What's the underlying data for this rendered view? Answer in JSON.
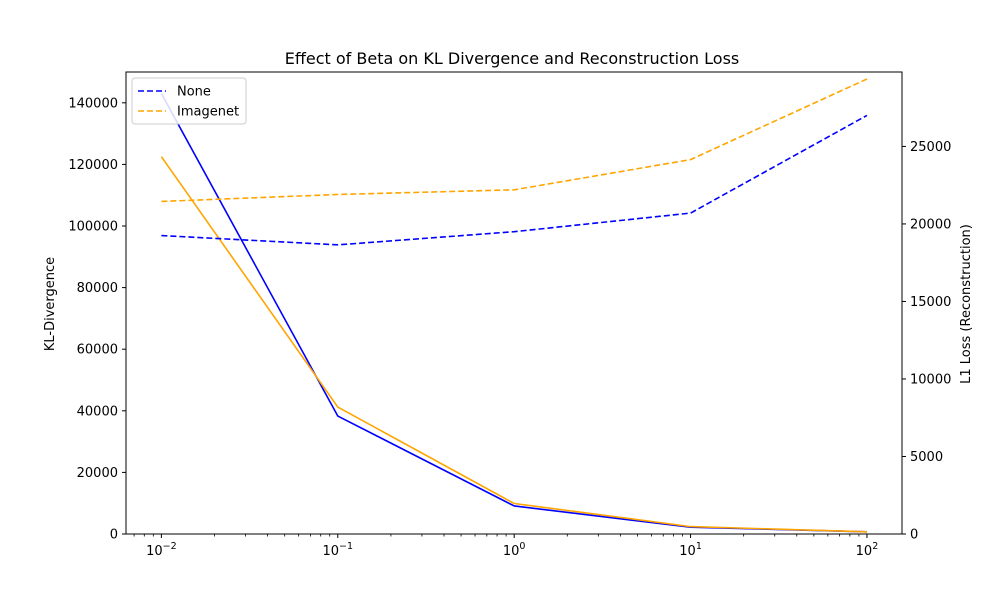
{
  "chart_data": {
    "type": "line",
    "title": "Effect of Beta on KL Divergence and Reconstruction Loss",
    "xlabel": "",
    "ylabel_left": "KL-Divergence",
    "ylabel_right": "L1 Loss (Reconstruction)",
    "x_scale": "log",
    "x": [
      0.01,
      0.1,
      1,
      10,
      100
    ],
    "x_tick_values": [
      0.01,
      0.1,
      1,
      10,
      100
    ],
    "x_tick_exponents": [
      "−2",
      "−1",
      "0",
      "1",
      "2"
    ],
    "x_tick_base": "10",
    "xlim": [
      0.0063,
      158
    ],
    "ylim_left": [
      0,
      150000
    ],
    "ylim_right": [
      0,
      29800
    ],
    "left_ticks": [
      "0",
      "20000",
      "40000",
      "60000",
      "80000",
      "100000",
      "120000",
      "140000"
    ],
    "left_tick_values": [
      0,
      20000,
      40000,
      60000,
      80000,
      100000,
      120000,
      140000
    ],
    "right_ticks": [
      "0",
      "5000",
      "10000",
      "15000",
      "20000",
      "25000"
    ],
    "right_tick_values": [
      0,
      5000,
      10000,
      15000,
      20000,
      25000
    ],
    "grid": false,
    "legend": {
      "placement": "top-left",
      "entries": [
        "None",
        "Imagenet"
      ]
    },
    "series": [
      {
        "name": "None",
        "axis": "left",
        "style": "solid",
        "color": "#0000ff",
        "values": [
          143000,
          38300,
          9100,
          2200,
          700
        ]
      },
      {
        "name": "Imagenet",
        "axis": "left",
        "style": "solid",
        "color": "#ffa500",
        "values": [
          122500,
          41200,
          9900,
          2400,
          700
        ]
      },
      {
        "name": "None",
        "axis": "right",
        "style": "dashed",
        "color": "#0000ff",
        "values": [
          19250,
          18650,
          19500,
          20700,
          27000
        ]
      },
      {
        "name": "Imagenet",
        "axis": "right",
        "style": "dashed",
        "color": "#ffa500",
        "values": [
          21450,
          21900,
          22200,
          24150,
          29350
        ]
      }
    ]
  }
}
